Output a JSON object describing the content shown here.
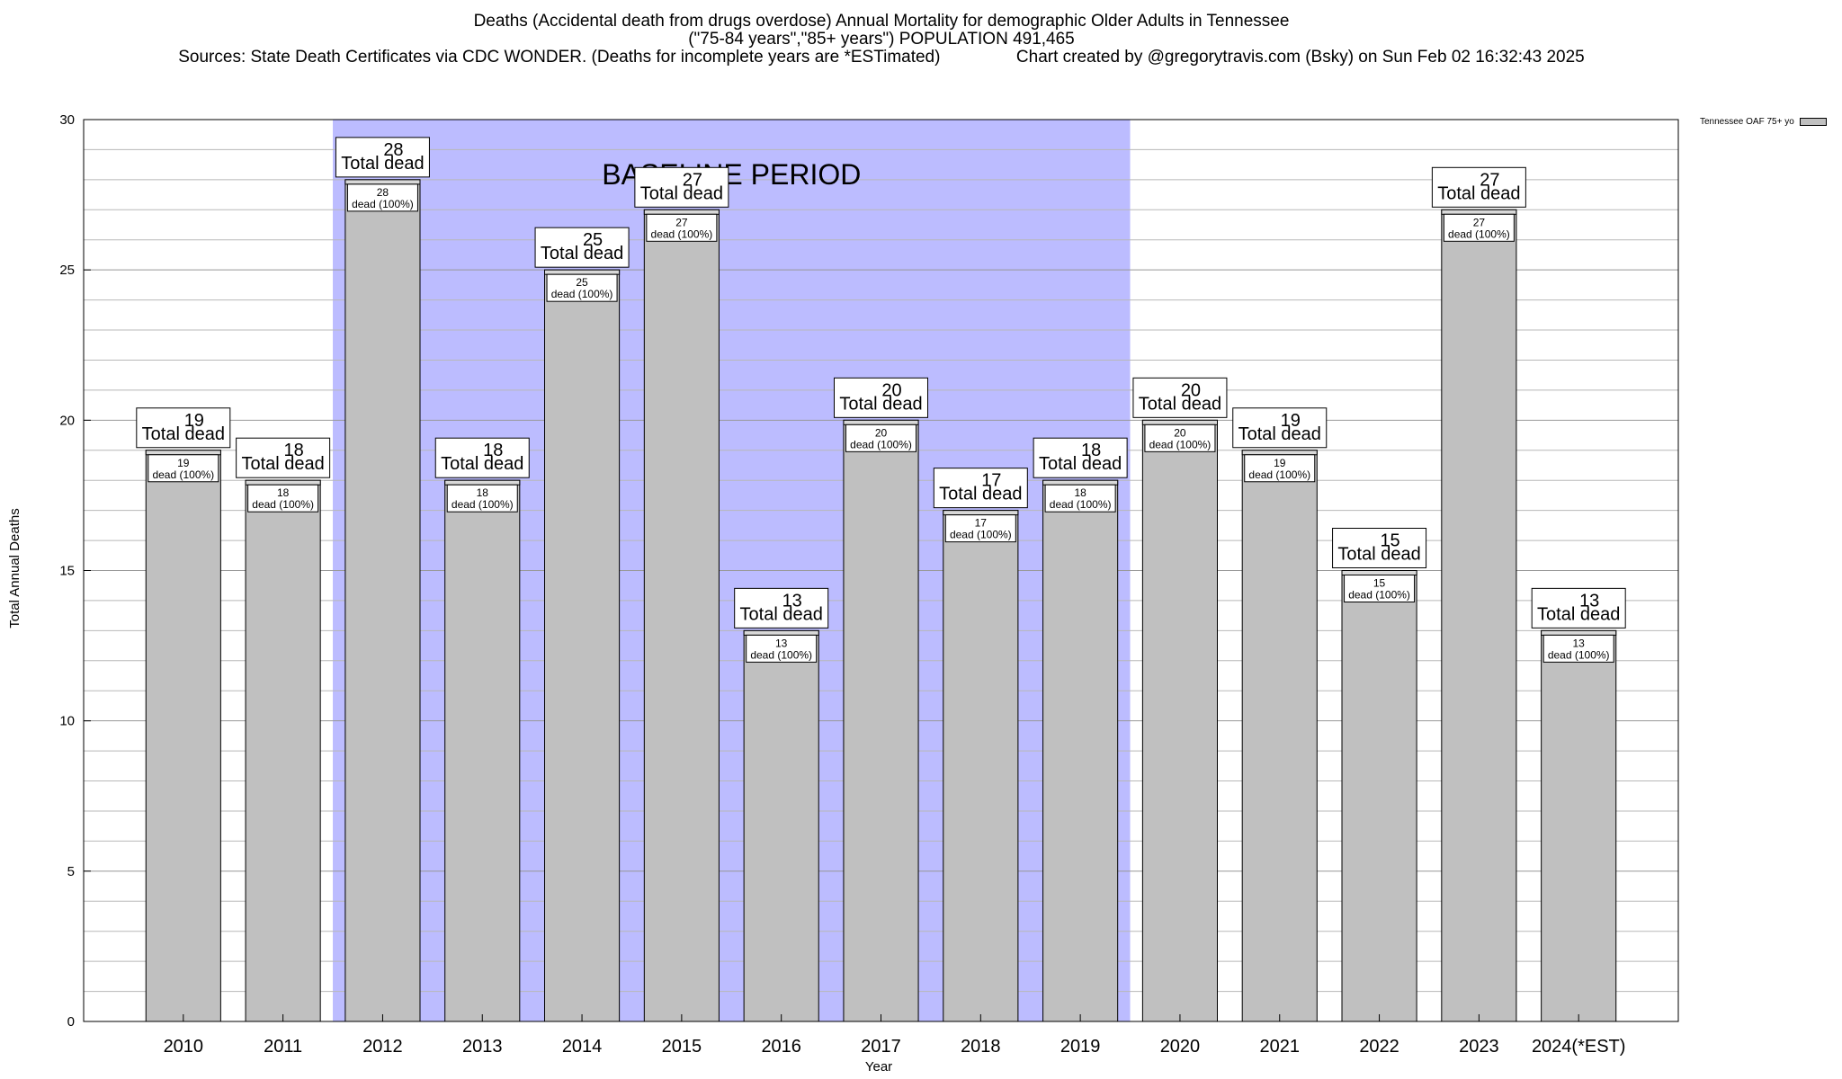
{
  "header": {
    "title_line1": "Deaths (Accidental death from drugs overdose) Annual Mortality for demographic Older Adults in Tennessee",
    "title_line2": "(\"75-84 years\",\"85+ years\") POPULATION 491,465",
    "title_line3": "Sources: State Death Certificates via CDC WONDER. (Deaths for incomplete years are *ESTimated)                Chart created by @gregorytravis.com (Bsky) on Sun Feb 02 16:32:43 2025"
  },
  "chart_data": {
    "type": "bar",
    "xlabel": "Year",
    "ylabel": "Total Annual Deaths",
    "ylim": [
      0,
      30
    ],
    "yticks": [
      0,
      5,
      10,
      15,
      20,
      25,
      30
    ],
    "grid": true,
    "categories": [
      "2010",
      "2011",
      "2012",
      "2013",
      "2014",
      "2015",
      "2016",
      "2017",
      "2018",
      "2019",
      "2020",
      "2021",
      "2022",
      "2023",
      "2024(*EST)"
    ],
    "series": [
      {
        "name": "Tennessee OAF 75+ yo",
        "color": "#c0c0c0",
        "values": [
          19,
          18,
          28,
          18,
          25,
          27,
          13,
          20,
          17,
          18,
          20,
          19,
          15,
          27,
          13
        ]
      }
    ],
    "total_label_suffix": "Total dead",
    "inner_label_suffix": "dead (100%)",
    "legend_position": "top-right",
    "baseline_period": {
      "label": "BASELINE PERIOD",
      "start": "2012",
      "end": "2019",
      "color": "#bcbcff"
    }
  }
}
